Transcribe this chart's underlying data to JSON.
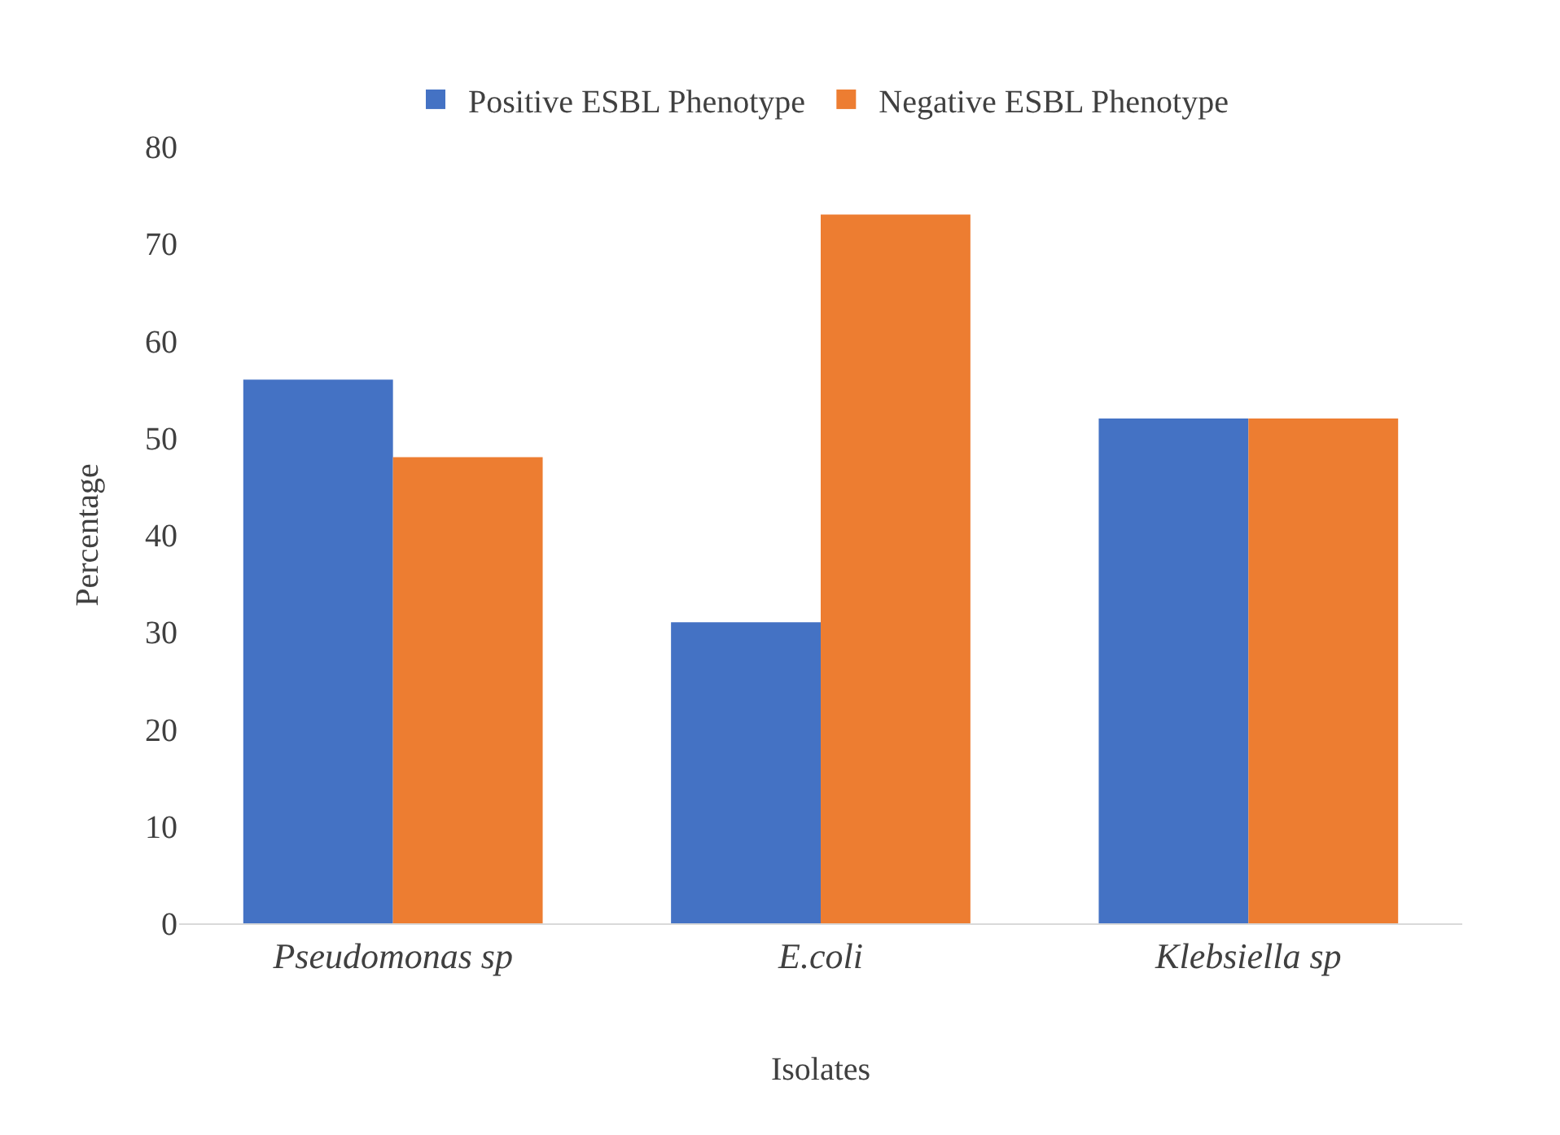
{
  "chart_data": {
    "type": "bar",
    "xlabel": "Isolates",
    "ylabel": "Percentage",
    "categories": [
      "Pseudomonas sp",
      "E.coli",
      "Klebsiella sp"
    ],
    "series": [
      {
        "name": "Positive ESBL Phenotype",
        "color": "#4472c4",
        "values": [
          56,
          31,
          52
        ]
      },
      {
        "name": "Negative ESBL Phenotype",
        "color": "#ed7d31",
        "values": [
          48,
          73,
          52
        ]
      }
    ],
    "ylim": [
      0,
      80
    ],
    "yticks": [
      0,
      10,
      20,
      30,
      40,
      50,
      60,
      70,
      80
    ],
    "grid": false,
    "legend": "top"
  }
}
